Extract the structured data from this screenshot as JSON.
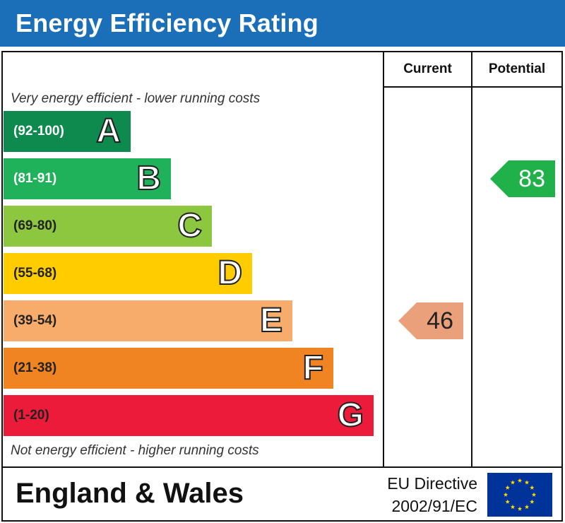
{
  "header": {
    "title": "Energy Efficiency Rating"
  },
  "columns": {
    "current": "Current",
    "potential": "Potential"
  },
  "captions": {
    "top": "Very energy efficient - lower running costs",
    "bottom": "Not energy efficient - higher running costs"
  },
  "footer": {
    "region": "England & Wales",
    "directive_line1": "EU Directive",
    "directive_line2": "2002/91/EC"
  },
  "chart_data": {
    "type": "bar",
    "title": "Energy Efficiency Rating",
    "bands": [
      {
        "letter": "A",
        "range": "(92-100)",
        "color": "#0f8a4f",
        "text_color": "#ffffff"
      },
      {
        "letter": "B",
        "range": "(81-91)",
        "color": "#1fb25a",
        "text_color": "#ffffff"
      },
      {
        "letter": "C",
        "range": "(69-80)",
        "color": "#8dc63f",
        "text_color": "#222222"
      },
      {
        "letter": "D",
        "range": "(55-68)",
        "color": "#ffcc00",
        "text_color": "#222222"
      },
      {
        "letter": "E",
        "range": "(39-54)",
        "color": "#f7ac6b",
        "text_color": "#222222"
      },
      {
        "letter": "F",
        "range": "(21-38)",
        "color": "#f08322",
        "text_color": "#222222"
      },
      {
        "letter": "G",
        "range": "(1-20)",
        "color": "#ed1b3a",
        "text_color": "#222222"
      }
    ],
    "current": {
      "value": 46,
      "band": "E",
      "color": "#e9a07b",
      "text_color": "#222222"
    },
    "potential": {
      "value": 83,
      "band": "B",
      "color": "#21b14b",
      "text_color": "#ffffff"
    }
  }
}
